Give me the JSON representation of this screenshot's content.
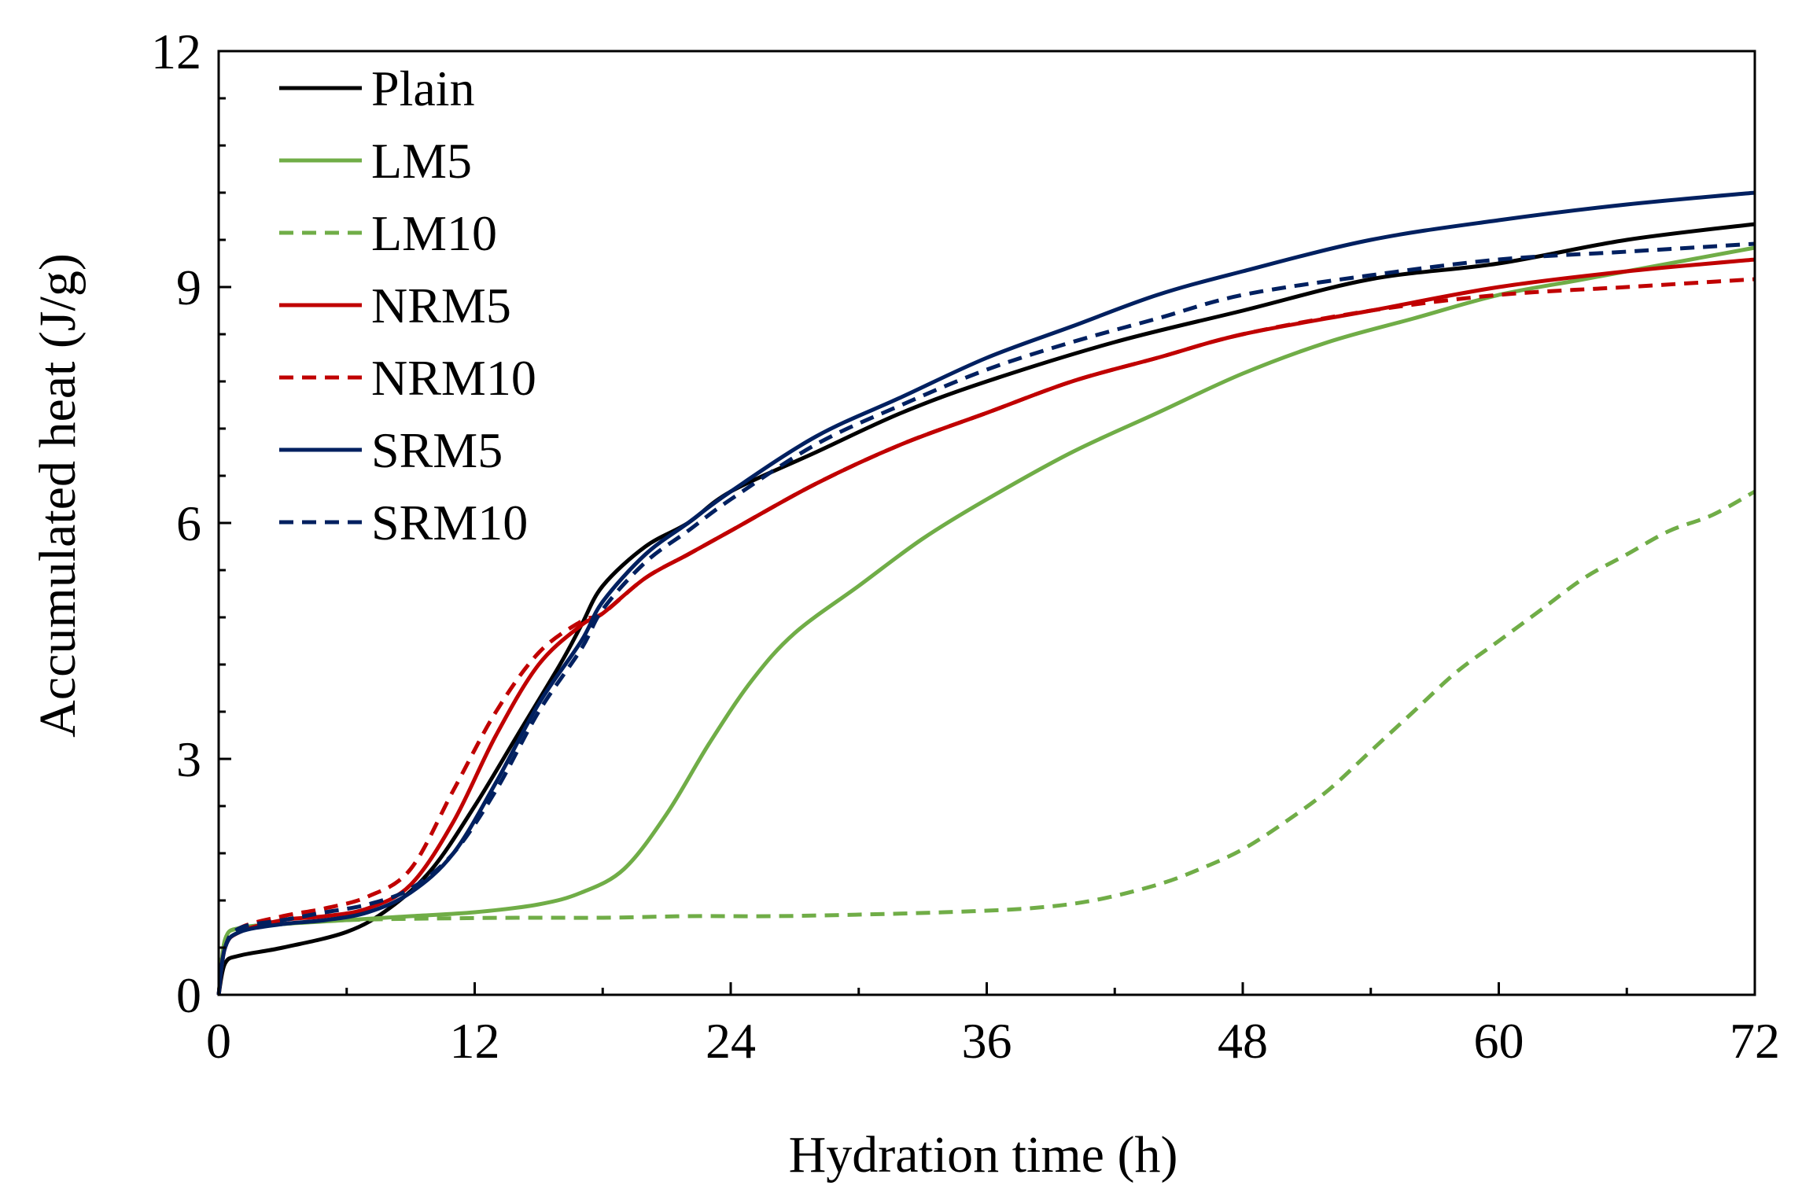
{
  "chart_data": {
    "type": "line",
    "title": "",
    "xlabel": "Hydration time (h)",
    "ylabel": "Accumulated heat (J/g)",
    "xlim": [
      0,
      72
    ],
    "ylim": [
      0,
      12
    ],
    "xticks": [
      0,
      12,
      24,
      36,
      48,
      60,
      72
    ],
    "yticks": [
      0,
      3,
      6,
      9,
      12
    ],
    "xtick_labels": [
      "0",
      "12",
      "24",
      "36",
      "48",
      "60",
      "72"
    ],
    "ytick_labels": [
      "0",
      "3",
      "6",
      "9",
      "12"
    ],
    "grid": false,
    "legend_position": "top-left",
    "series": [
      {
        "name": "Plain",
        "color": "#000000",
        "dash": "solid",
        "x": [
          0,
          0.3,
          1,
          3,
          6,
          8,
          10,
          12,
          14,
          16,
          17,
          18,
          20,
          22,
          24,
          28,
          32,
          36,
          42,
          48,
          54,
          60,
          66,
          72
        ],
        "y": [
          0,
          0.4,
          0.5,
          0.6,
          0.8,
          1.1,
          1.6,
          2.4,
          3.3,
          4.2,
          4.7,
          5.2,
          5.7,
          6.0,
          6.4,
          6.9,
          7.4,
          7.8,
          8.3,
          8.7,
          9.1,
          9.3,
          9.6,
          9.8
        ]
      },
      {
        "name": "LM5",
        "color": "#70AD47",
        "dash": "solid",
        "x": [
          0,
          0.3,
          1,
          3,
          6,
          9,
          12,
          15,
          17,
          19,
          21,
          23,
          25,
          27,
          30,
          33,
          36,
          40,
          44,
          48,
          52,
          56,
          60,
          64,
          68,
          72
        ],
        "y": [
          0,
          0.7,
          0.85,
          0.9,
          0.95,
          1.0,
          1.05,
          1.15,
          1.3,
          1.6,
          2.3,
          3.2,
          4.0,
          4.6,
          5.2,
          5.8,
          6.3,
          6.9,
          7.4,
          7.9,
          8.3,
          8.6,
          8.9,
          9.1,
          9.3,
          9.5
        ]
      },
      {
        "name": "LM10",
        "color": "#70AD47",
        "dash": "dashed",
        "x": [
          0,
          0.3,
          1,
          3,
          6,
          10,
          14,
          18,
          22,
          26,
          30,
          34,
          38,
          41,
          44,
          46,
          48,
          50,
          52,
          54,
          56,
          58,
          60,
          62,
          64,
          66,
          68,
          70,
          72
        ],
        "y": [
          0,
          0.7,
          0.85,
          0.9,
          0.95,
          0.97,
          0.98,
          0.98,
          1.0,
          1.0,
          1.02,
          1.05,
          1.1,
          1.2,
          1.4,
          1.6,
          1.85,
          2.2,
          2.6,
          3.1,
          3.6,
          4.1,
          4.5,
          4.9,
          5.3,
          5.6,
          5.9,
          6.1,
          6.4
        ]
      },
      {
        "name": "NRM5",
        "color": "#C00000",
        "dash": "solid",
        "x": [
          0,
          0.3,
          1,
          3,
          5,
          7,
          9,
          11,
          13,
          15,
          17,
          18,
          20,
          22,
          24,
          28,
          32,
          36,
          40,
          44,
          48,
          54,
          60,
          66,
          72
        ],
        "y": [
          0,
          0.6,
          0.8,
          0.95,
          1.0,
          1.1,
          1.4,
          2.2,
          3.3,
          4.2,
          4.7,
          4.85,
          5.3,
          5.6,
          5.9,
          6.5,
          7.0,
          7.4,
          7.8,
          8.1,
          8.4,
          8.7,
          9.0,
          9.2,
          9.35
        ]
      },
      {
        "name": "NRM10",
        "color": "#C00000",
        "dash": "dashed",
        "x": [
          0,
          0.3,
          1,
          3,
          5,
          7,
          9,
          11,
          13,
          15,
          17,
          18,
          20,
          22,
          24,
          28,
          32,
          36,
          40,
          44,
          48,
          54,
          60,
          66,
          72
        ],
        "y": [
          0,
          0.6,
          0.85,
          1.0,
          1.1,
          1.25,
          1.6,
          2.6,
          3.6,
          4.35,
          4.75,
          4.85,
          5.3,
          5.6,
          5.9,
          6.5,
          7.0,
          7.4,
          7.8,
          8.1,
          8.4,
          8.7,
          8.9,
          9.0,
          9.1
        ]
      },
      {
        "name": "SRM5",
        "color": "#002060",
        "dash": "solid",
        "x": [
          0,
          0.3,
          1,
          3,
          5,
          7,
          9,
          11,
          13,
          15,
          17,
          18,
          20,
          22,
          24,
          28,
          32,
          36,
          40,
          44,
          48,
          54,
          60,
          66,
          72
        ],
        "y": [
          0,
          0.6,
          0.8,
          0.9,
          0.95,
          1.05,
          1.3,
          1.8,
          2.7,
          3.7,
          4.5,
          5.0,
          5.6,
          6.0,
          6.4,
          7.1,
          7.6,
          8.1,
          8.5,
          8.9,
          9.2,
          9.6,
          9.85,
          10.05,
          10.2
        ]
      },
      {
        "name": "SRM10",
        "color": "#002060",
        "dash": "dashed",
        "x": [
          0,
          0.3,
          1,
          3,
          5,
          7,
          9,
          11,
          13,
          15,
          17,
          18,
          20,
          22,
          24,
          28,
          32,
          36,
          40,
          44,
          48,
          54,
          60,
          66,
          72
        ],
        "y": [
          0,
          0.6,
          0.85,
          0.95,
          1.05,
          1.15,
          1.35,
          1.8,
          2.6,
          3.6,
          4.4,
          4.9,
          5.5,
          5.9,
          6.3,
          7.0,
          7.5,
          7.95,
          8.3,
          8.6,
          8.9,
          9.15,
          9.35,
          9.45,
          9.55
        ]
      }
    ]
  }
}
